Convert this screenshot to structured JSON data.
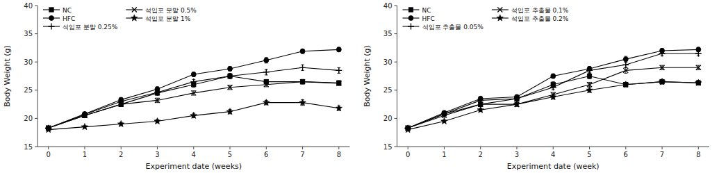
{
  "chart_data": [
    {
      "type": "line",
      "xlabel": "Experiment date (weeks)",
      "ylabel": "Body Weight (g)",
      "x": [
        0,
        1,
        2,
        3,
        4,
        5,
        6,
        7,
        8
      ],
      "xlim": [
        -0.3,
        8.3
      ],
      "xticks": [
        0,
        1,
        2,
        3,
        4,
        5,
        6,
        7,
        8
      ],
      "ylim": [
        15,
        40
      ],
      "yticks": [
        15,
        20,
        25,
        30,
        35,
        40
      ],
      "legend": "upper left",
      "series": [
        {
          "name": "NC",
          "marker": "square",
          "color": "#000000",
          "values": [
            18.3,
            20.5,
            22.5,
            24.5,
            26.0,
            27.5,
            26.5,
            26.5,
            26.3
          ],
          "errors": [
            0.2,
            0.3,
            0.4,
            0.4,
            0.5,
            0.5,
            0.4,
            0.4,
            0.4
          ]
        },
        {
          "name": "HFC",
          "marker": "circle",
          "color": "#000000",
          "values": [
            18.3,
            20.8,
            23.3,
            25.2,
            27.8,
            28.8,
            30.3,
            31.9,
            32.2
          ],
          "errors": [
            0.2,
            0.3,
            0.4,
            0.4,
            0.4,
            0.4,
            0.5,
            0.4,
            0.4
          ]
        },
        {
          "name": "석입포 분말 0.25%",
          "marker": "plus",
          "color": "#000000",
          "values": [
            18.3,
            20.7,
            23.0,
            24.6,
            26.5,
            27.5,
            28.2,
            29.0,
            28.5
          ],
          "errors": [
            0.2,
            0.3,
            0.4,
            0.4,
            0.4,
            0.4,
            0.5,
            0.5,
            0.5
          ]
        },
        {
          "name": "석입포 분말 0.5%",
          "marker": "x",
          "color": "#000000",
          "values": [
            18.3,
            20.5,
            22.5,
            23.2,
            24.5,
            25.5,
            26.0,
            26.5,
            26.2
          ],
          "errors": [
            0.2,
            0.3,
            0.4,
            0.4,
            0.4,
            0.4,
            0.4,
            0.4,
            0.4
          ]
        },
        {
          "name": "석입포 분말 1%",
          "marker": "star",
          "color": "#000000",
          "values": [
            18.0,
            18.5,
            19.0,
            19.5,
            20.5,
            21.2,
            22.8,
            22.8,
            21.8
          ],
          "errors": [
            0.2,
            0.2,
            0.3,
            0.3,
            0.4,
            0.4,
            0.4,
            0.5,
            0.4
          ]
        }
      ]
    },
    {
      "type": "line",
      "xlabel": "Experiment date (week)",
      "ylabel": "Body Weight (g)",
      "x": [
        0,
        1,
        2,
        3,
        4,
        5,
        6,
        7,
        8
      ],
      "xlim": [
        -0.3,
        8.3
      ],
      "xticks": [
        0,
        1,
        2,
        3,
        4,
        5,
        6,
        7,
        8
      ],
      "ylim": [
        15,
        40
      ],
      "yticks": [
        15,
        20,
        25,
        30,
        35,
        40
      ],
      "legend": "upper left",
      "series": [
        {
          "name": "NC",
          "marker": "square",
          "color": "#000000",
          "values": [
            18.3,
            20.8,
            22.5,
            23.5,
            26.0,
            27.5,
            26.0,
            26.5,
            26.3
          ],
          "errors": [
            0.2,
            0.3,
            0.4,
            0.4,
            0.5,
            0.5,
            0.4,
            0.4,
            0.4
          ]
        },
        {
          "name": "HFC",
          "marker": "circle",
          "color": "#000000",
          "values": [
            18.3,
            21.0,
            23.5,
            23.8,
            27.5,
            28.8,
            30.5,
            32.0,
            32.2
          ],
          "errors": [
            0.2,
            0.3,
            0.4,
            0.4,
            0.4,
            0.4,
            0.5,
            0.4,
            0.4
          ]
        },
        {
          "name": "석입포 추출물 0.05%",
          "marker": "plus",
          "color": "#000000",
          "values": [
            18.3,
            20.8,
            23.2,
            23.5,
            25.5,
            28.5,
            29.5,
            31.5,
            31.5
          ],
          "errors": [
            0.2,
            0.3,
            0.4,
            0.4,
            0.4,
            0.4,
            0.5,
            0.4,
            0.4
          ]
        },
        {
          "name": "석입포 추출물 0.1%",
          "marker": "x",
          "color": "#000000",
          "values": [
            18.3,
            20.5,
            22.5,
            22.5,
            24.2,
            26.0,
            28.5,
            29.0,
            29.0
          ],
          "errors": [
            0.2,
            0.3,
            0.4,
            0.4,
            0.4,
            0.4,
            0.5,
            0.4,
            0.4
          ]
        },
        {
          "name": "석입포 추출물 0.2%",
          "marker": "star",
          "color": "#000000",
          "values": [
            18.0,
            19.5,
            21.5,
            22.5,
            23.8,
            25.0,
            26.0,
            26.5,
            26.3
          ],
          "errors": [
            0.2,
            0.2,
            0.3,
            0.3,
            0.4,
            0.4,
            0.4,
            0.4,
            0.4
          ]
        }
      ]
    }
  ]
}
